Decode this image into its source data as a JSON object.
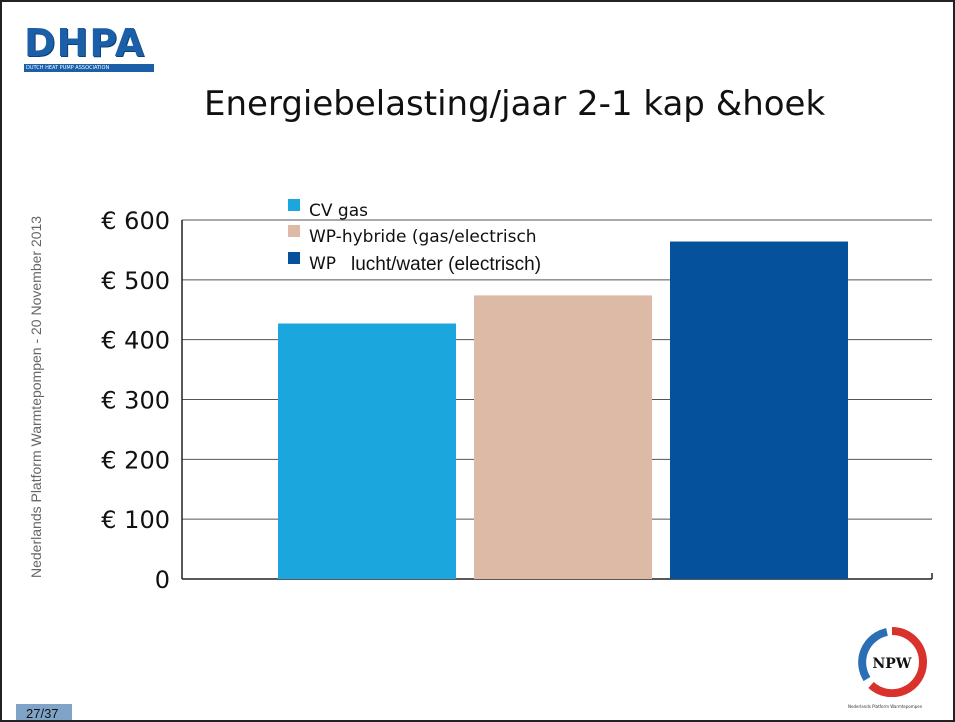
{
  "logo": {
    "name": "DHPA",
    "subtitle": "DUTCH HEAT PUMP ASSOCIATION"
  },
  "title": "Energiebelasting/jaar 2-1 kap &hoek",
  "side_text": "Nederlands Platform Warmtepompen - 20 November 2013",
  "page_number": "27/37",
  "npw_logo": {
    "text": "NPW",
    "caption": "Nederlands Platform Warmtepompen"
  },
  "colors": {
    "accent": "#1a5fa8",
    "cv_gas": "#1ba7de",
    "wp_hybride": "#dcbaa5",
    "wp_lucht_water": "#06519c",
    "npw_red": "#d9312b",
    "npw_blue": "#2a6fb5"
  },
  "chart_data": {
    "type": "bar",
    "categories": [
      "CV gas",
      "WP-hybride (gas/electrisch",
      "WP lucht/water (electrisch)"
    ],
    "series": [
      {
        "name": "CV gas",
        "values": [
          427,
          null,
          null
        ]
      },
      {
        "name": "WP-hybride (gas/electrisch",
        "values": [
          null,
          474,
          null
        ]
      },
      {
        "name": "WP lucht/water (electrisch)",
        "values": [
          null,
          null,
          564
        ]
      }
    ],
    "values": [
      427,
      474,
      564
    ],
    "legend": [
      "CV gas",
      "WP-hybride (gas/electrisch",
      "WP",
      "lucht/water (electrisch)"
    ],
    "yticks": [
      "0",
      "€ 100",
      "€ 200",
      "€ 300",
      "€ 400",
      "€ 500",
      "€ 600"
    ],
    "ylim": [
      0,
      600
    ],
    "title": "",
    "xlabel": "",
    "ylabel": "",
    "grid": true,
    "legend_placement": "top-left"
  }
}
